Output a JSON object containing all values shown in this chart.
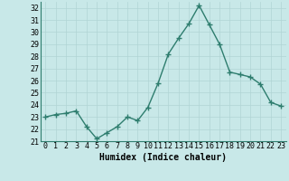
{
  "x": [
    0,
    1,
    2,
    3,
    4,
    5,
    6,
    7,
    8,
    9,
    10,
    11,
    12,
    13,
    14,
    15,
    16,
    17,
    18,
    19,
    20,
    21,
    22,
    23
  ],
  "y": [
    23.0,
    23.2,
    23.3,
    23.5,
    22.2,
    21.2,
    21.7,
    22.2,
    23.0,
    22.7,
    23.8,
    25.8,
    28.2,
    29.5,
    30.7,
    32.2,
    30.6,
    29.0,
    26.7,
    26.5,
    26.3,
    25.7,
    24.2,
    23.9
  ],
  "line_color": "#2e7d6e",
  "marker": "+",
  "marker_size": 4,
  "line_width": 1.0,
  "bg_color": "#c8e8e8",
  "grid_color": "#b0d4d4",
  "xlabel": "Humidex (Indice chaleur)",
  "xlabel_fontsize": 7,
  "tick_fontsize": 6,
  "ylim": [
    21,
    32.5
  ],
  "xlim": [
    -0.5,
    23.5
  ],
  "yticks": [
    21,
    22,
    23,
    24,
    25,
    26,
    27,
    28,
    29,
    30,
    31,
    32
  ],
  "xticks": [
    0,
    1,
    2,
    3,
    4,
    5,
    6,
    7,
    8,
    9,
    10,
    11,
    12,
    13,
    14,
    15,
    16,
    17,
    18,
    19,
    20,
    21,
    22,
    23
  ]
}
